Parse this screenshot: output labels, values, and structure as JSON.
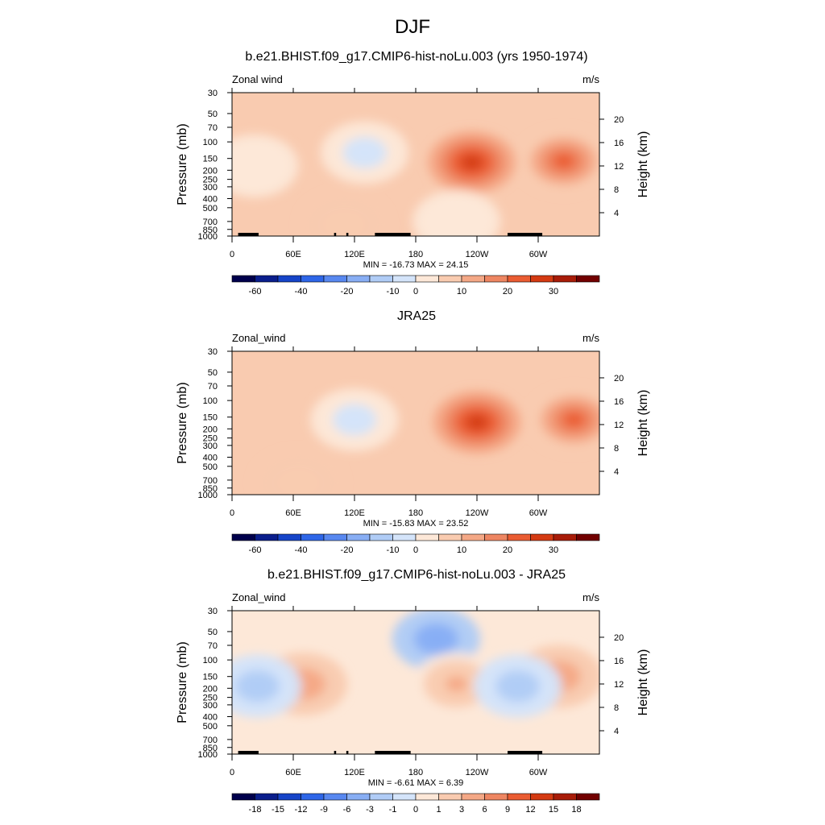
{
  "title": "DJF",
  "colors": {
    "div": [
      "#00004c",
      "#0a1e8c",
      "#1644c8",
      "#2e66e8",
      "#5888f0",
      "#88aef4",
      "#b0ccf6",
      "#d4e4fa",
      "#fde8d8",
      "#f9cbb0",
      "#f4a886",
      "#ee8662",
      "#ea5c32",
      "#d43a12",
      "#a81c08",
      "#720000"
    ],
    "land": "#000000"
  },
  "panels": [
    {
      "title": "b.e21.BHIST.f09_g17.CMIP6-hist-noLu.003 (yrs 1950-1974)",
      "left_label": "Zonal wind",
      "right_label": "m/s",
      "stats": "MIN = -16.73  MAX =  24.15",
      "colorbar_labels": [
        "-60",
        "-40",
        "-20",
        "-10",
        "0",
        "10",
        "20",
        "30"
      ],
      "show_land": true
    },
    {
      "title": "JRA25",
      "left_label": "Zonal_wind",
      "right_label": "m/s",
      "stats": "MIN = -15.83  MAX =  23.52",
      "colorbar_labels": [
        "-60",
        "-40",
        "-20",
        "-10",
        "0",
        "10",
        "20",
        "30"
      ],
      "show_land": false
    },
    {
      "title": "b.e21.BHIST.f09_g17.CMIP6-hist-noLu.003 - JRA25",
      "left_label": "Zonal_wind",
      "right_label": "m/s",
      "stats": "MIN =  -6.61  MAX =   6.39",
      "colorbar_labels": [
        "-18",
        "-15",
        "-12",
        "-9",
        "-6",
        "-3",
        "-1",
        "0",
        "1",
        "3",
        "6",
        "9",
        "12",
        "15",
        "18"
      ],
      "show_land": true
    }
  ],
  "axes": {
    "ylabel": "Pressure (mb)",
    "y2label": "Height (km)",
    "y_ticks": [
      "30",
      "50",
      "70",
      "100",
      "150",
      "200",
      "250",
      "300",
      "400",
      "500",
      "700",
      "850",
      "1000"
    ],
    "y2_ticks": [
      "20",
      "16",
      "12",
      "8",
      "4"
    ],
    "x_ticks": [
      "0",
      "60E",
      "120E",
      "180",
      "120W",
      "60W"
    ]
  },
  "chart_data": [
    {
      "type": "heatmap",
      "title": "b.e21.BHIST.f09_g17.CMIP6-hist-noLu.003 (yrs 1950-1974)",
      "variable": "Zonal wind",
      "units": "m/s",
      "x_ticks": [
        "0",
        "60E",
        "120E",
        "180",
        "120W",
        "60W"
      ],
      "y_ticks_mb": [
        30,
        50,
        70,
        100,
        150,
        200,
        250,
        300,
        400,
        500,
        700,
        850,
        1000
      ],
      "y2_ticks_km": [
        20,
        16,
        12,
        8,
        4
      ],
      "levels": [
        -70,
        -60,
        -50,
        -40,
        -30,
        -20,
        -15,
        -10,
        -5,
        0,
        5,
        10,
        15,
        20,
        25,
        30,
        35
      ],
      "colorbar_labels": [
        -60,
        -40,
        -20,
        -10,
        0,
        10,
        20,
        30
      ],
      "features": [
        {
          "lon": 130,
          "p_mb": 130,
          "u": -8
        },
        {
          "lon": 22,
          "p_mb": 180,
          "u": -3
        },
        {
          "lon": 235,
          "p_mb": 165,
          "u": 24
        },
        {
          "lon": 325,
          "p_mb": 160,
          "u": 18
        },
        {
          "lon": 110,
          "p_mb": 750,
          "u": 4
        },
        {
          "lon": 220,
          "p_mb": 700,
          "u": -3
        }
      ],
      "min": -16.73,
      "max": 24.15
    },
    {
      "type": "heatmap",
      "title": "JRA25",
      "variable": "Zonal_wind",
      "units": "m/s",
      "x_ticks": [
        "0",
        "60E",
        "120E",
        "180",
        "120W",
        "60W"
      ],
      "y_ticks_mb": [
        30,
        50,
        70,
        100,
        150,
        200,
        250,
        300,
        400,
        500,
        700,
        850,
        1000
      ],
      "y2_ticks_km": [
        20,
        16,
        12,
        8,
        4
      ],
      "levels": [
        -70,
        -60,
        -50,
        -40,
        -30,
        -20,
        -15,
        -10,
        -5,
        0,
        5,
        10,
        15,
        20,
        25,
        30,
        35
      ],
      "colorbar_labels": [
        -60,
        -40,
        -20,
        -10,
        0,
        10,
        20,
        30
      ],
      "features": [
        {
          "lon": 120,
          "p_mb": 160,
          "u": -9
        },
        {
          "lon": 240,
          "p_mb": 170,
          "u": 23
        },
        {
          "lon": 335,
          "p_mb": 160,
          "u": 15
        },
        {
          "lon": 65,
          "p_mb": 750,
          "u": 3
        }
      ],
      "min": -15.83,
      "max": 23.52
    },
    {
      "type": "heatmap",
      "title": "b.e21.BHIST.f09_g17.CMIP6-hist-noLu.003 - JRA25",
      "variable": "Zonal_wind",
      "units": "m/s",
      "x_ticks": [
        "0",
        "60E",
        "120E",
        "180",
        "120W",
        "60W"
      ],
      "y_ticks_mb": [
        30,
        50,
        70,
        100,
        150,
        200,
        250,
        300,
        400,
        500,
        700,
        850,
        1000
      ],
      "y2_ticks_km": [
        20,
        16,
        12,
        8,
        4
      ],
      "levels": [
        -21,
        -18,
        -15,
        -12,
        -9,
        -6,
        -3,
        -1,
        0,
        1,
        3,
        6,
        9,
        12,
        15,
        18,
        21
      ],
      "colorbar_labels": [
        -18,
        -15,
        -12,
        -9,
        -6,
        -3,
        -1,
        0,
        1,
        3,
        6,
        9,
        12,
        15,
        18
      ],
      "features": [
        {
          "lon": 200,
          "p_mb": 60,
          "u": -5
        },
        {
          "lon": 70,
          "p_mb": 180,
          "u": 4
        },
        {
          "lon": 220,
          "p_mb": 180,
          "u": 3
        },
        {
          "lon": 320,
          "p_mb": 150,
          "u": 4
        },
        {
          "lon": 25,
          "p_mb": 190,
          "u": -2
        },
        {
          "lon": 280,
          "p_mb": 190,
          "u": -2
        }
      ],
      "min": -6.61,
      "max": 6.39
    }
  ]
}
